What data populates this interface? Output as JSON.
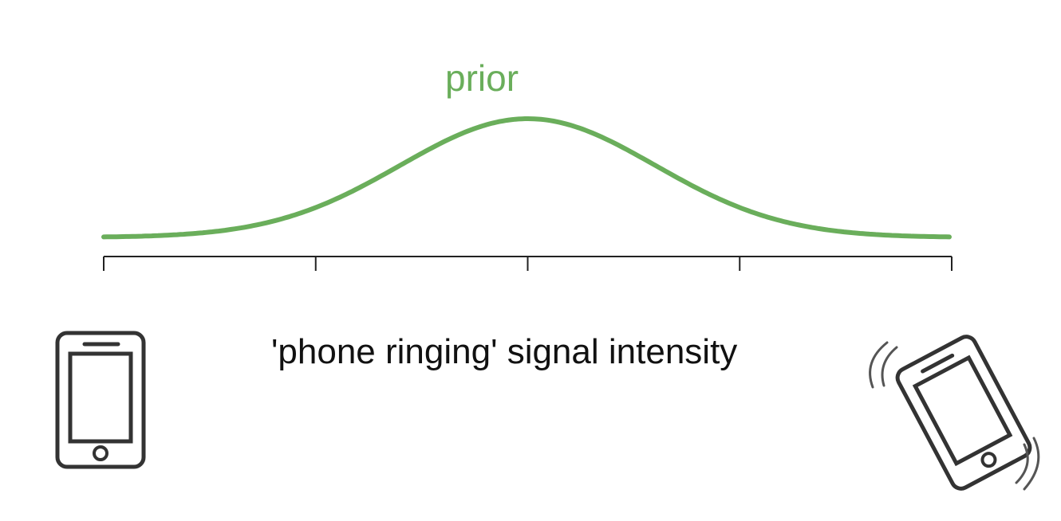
{
  "curve": {
    "label": "prior",
    "color": "#6aae5b"
  },
  "axis": {
    "label": "'phone ringing' signal intensity",
    "tick_count": 5
  },
  "icons": {
    "left": "phone-silent-icon",
    "right": "phone-ringing-icon"
  }
}
